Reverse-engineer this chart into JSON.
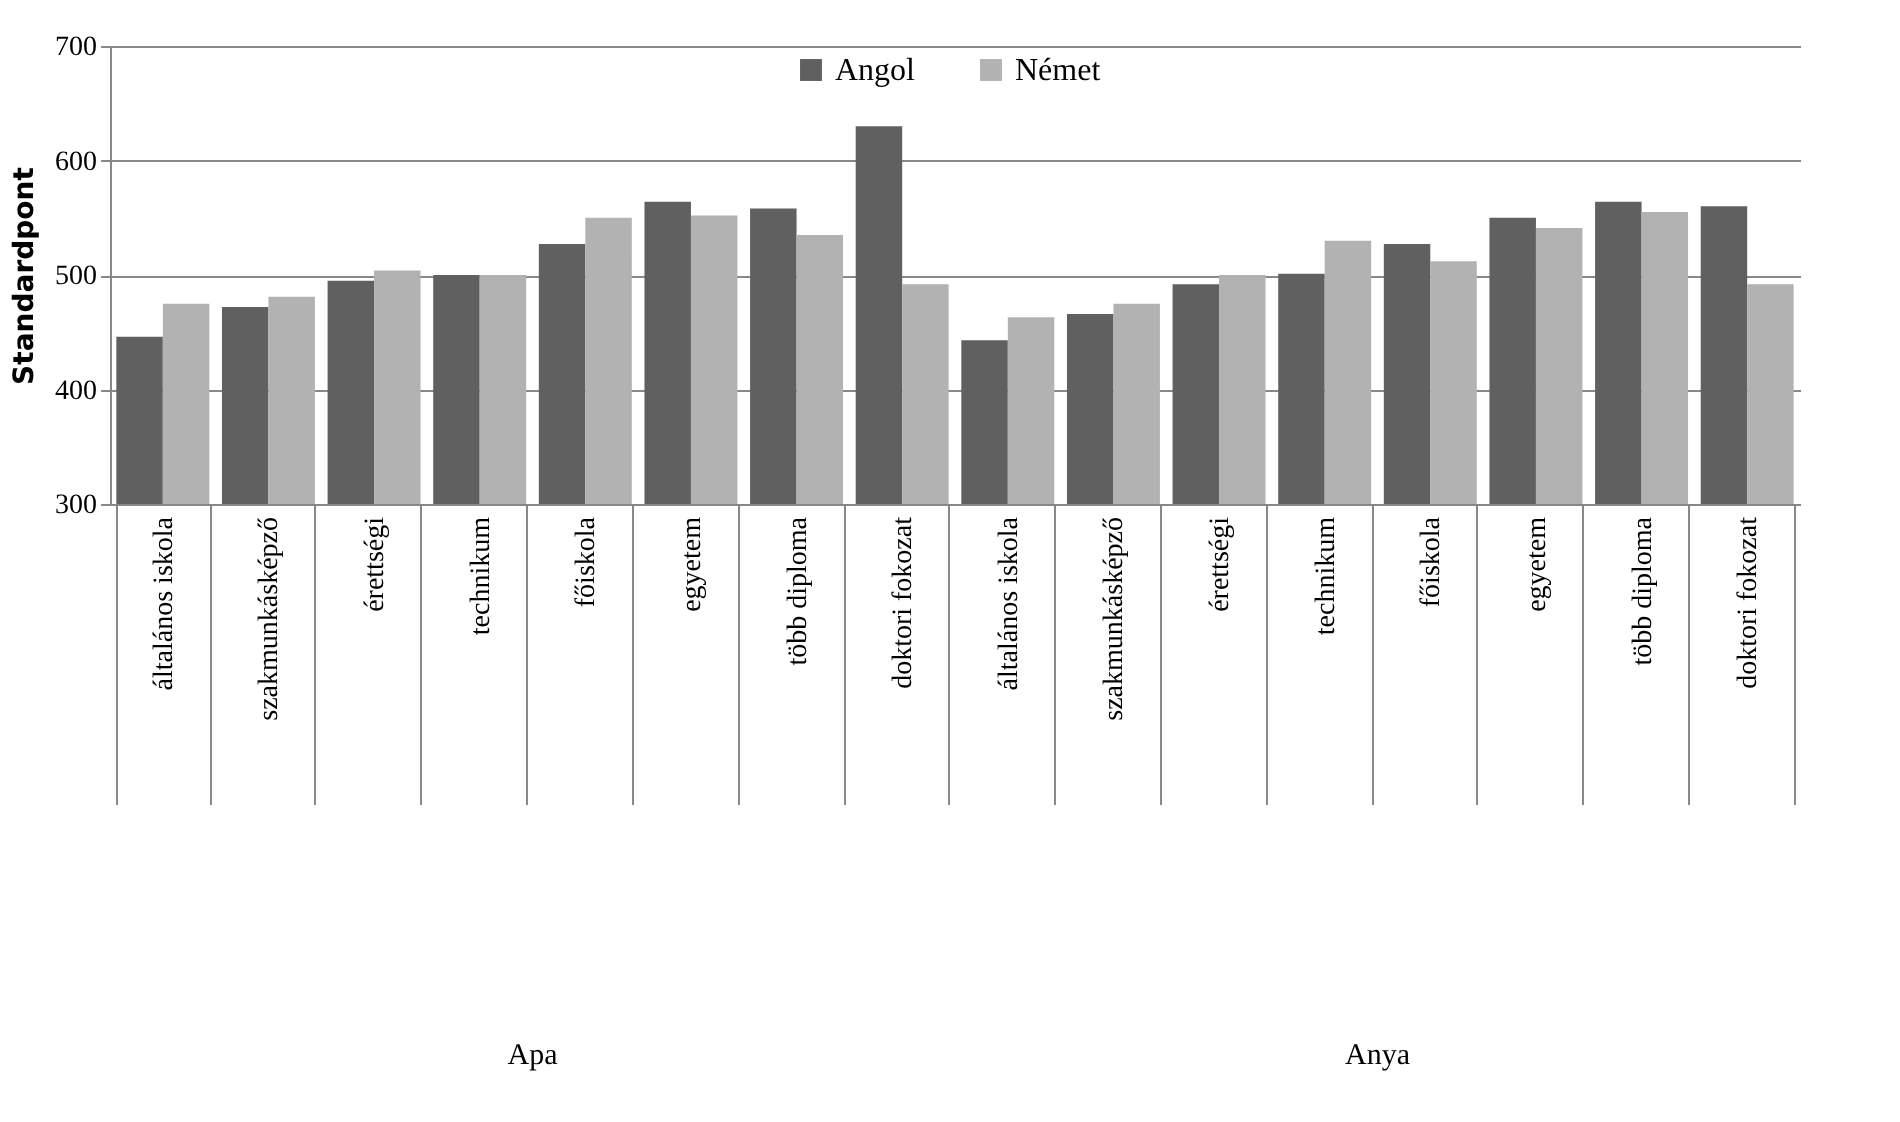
{
  "chart_data": {
    "type": "bar",
    "ylabel": "Standardpont",
    "categories": [
      "általános iskola",
      "szakmunkásképző",
      "érettségi",
      "technikum",
      "főiskola",
      "egyetem",
      "több diploma",
      "doktori fokozat",
      "általános iskola",
      "szakmunkásképző",
      "érettségi",
      "technikum",
      "főiskola",
      "egyetem",
      "több diploma",
      "doktori fokozat"
    ],
    "series": [
      {
        "name": "Angol",
        "color": "#606060",
        "values": [
          446,
          472,
          495,
          500,
          527,
          564,
          558,
          630,
          443,
          466,
          492,
          501,
          527,
          550,
          564,
          560
        ]
      },
      {
        "name": "Német",
        "color": "#b2b2b2",
        "values": [
          475,
          481,
          504,
          500,
          550,
          552,
          535,
          492,
          463,
          475,
          500,
          530,
          512,
          541,
          555,
          492
        ]
      }
    ],
    "ylim": [
      300,
      700
    ],
    "yticks": [
      300,
      400,
      500,
      600,
      700
    ],
    "grid": "y",
    "legend": "top",
    "annotations": [
      "Apa",
      "Anya"
    ]
  }
}
